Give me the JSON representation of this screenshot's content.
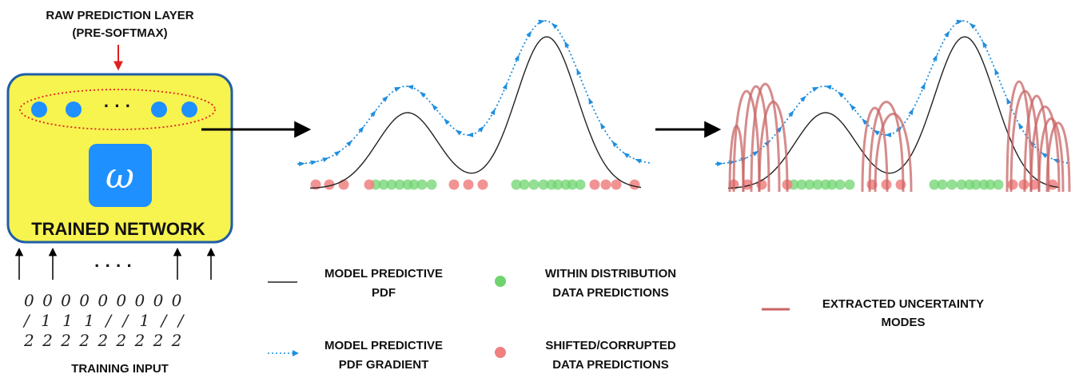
{
  "network": {
    "raw_layer_line1": "RAW PREDICTION  LAYER",
    "raw_layer_line2": "(PRE-SOFTMAX)",
    "dots_ellipsis": "· · ·",
    "omega_symbol": "ω",
    "trained_label": "TRAINED  NETWORK",
    "input_ellipsis": "· · · ·",
    "training_input_label": "TRAINING INPUT",
    "digit_rows": [
      "0 0 0 0 0 0 0 0 0",
      "/ 1 1 1 / / 1 / /",
      "2 2 2 2 2 2 2 2 2"
    ]
  },
  "legend": {
    "pdf_line1": "MODEL  PREDICTIVE",
    "pdf_line2": "PDF",
    "gradient_line1": "MODEL  PREDICTIVE",
    "gradient_line2": "PDF  GRADIENT",
    "within_line1": "WITHIN  DISTRIBUTION",
    "within_line2": "DATA  PREDICTIONS",
    "shifted_line1": "SHIFTED/CORRUPTED",
    "shifted_line2": "DATA  PREDICTIONS",
    "modes_line1": "EXTRACTED  UNCERTAINTY",
    "modes_line2": "MODES"
  },
  "colors": {
    "network_fill": "#f7f34f",
    "network_border": "#1f5ea8",
    "neuron": "#1e90ff",
    "omega_box": "#1e90ff",
    "arrow_red": "#e02020",
    "ellipse_red": "#e02020",
    "gradient_blue": "#1e8fe0",
    "pdf_black": "#222222",
    "within_green": "#6fd46f",
    "shifted_red": "#f08080",
    "mode_red": "#c86464"
  }
}
